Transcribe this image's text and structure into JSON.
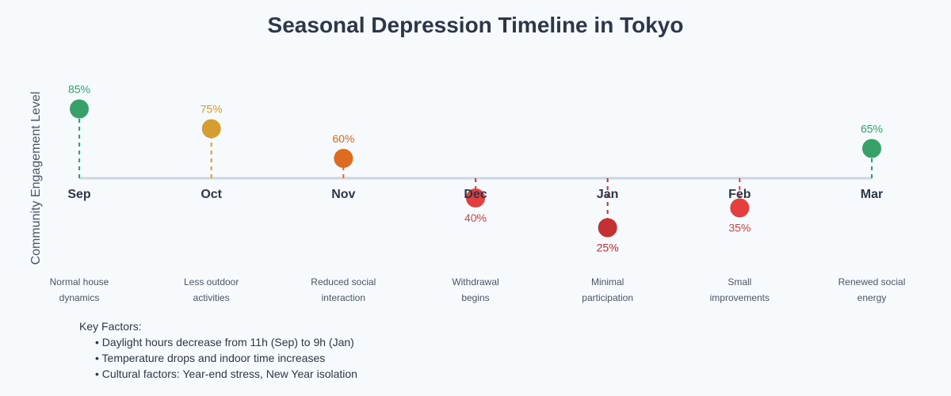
{
  "chart_data": {
    "type": "scatter",
    "title": "Seasonal Depression Timeline in Tokyo",
    "ylabel": "Community Engagement Level",
    "baseline": 50,
    "categories": [
      "Sep",
      "Oct",
      "Nov",
      "Dec",
      "Jan",
      "Feb",
      "Mar"
    ],
    "values": [
      85,
      75,
      60,
      40,
      25,
      35,
      65
    ],
    "labels": [
      "85%",
      "75%",
      "60%",
      "40%",
      "25%",
      "35%",
      "65%"
    ],
    "colors": [
      "#38a169",
      "#d69e2e",
      "#dd6b20",
      "#e53e3e",
      "#c53030",
      "#e53e3e",
      "#38a169"
    ],
    "descriptions": [
      [
        "Normal house",
        "dynamics"
      ],
      [
        "Less outdoor",
        "activities"
      ],
      [
        "Reduced social",
        "interaction"
      ],
      [
        "Withdrawal",
        "begins"
      ],
      [
        "Minimal",
        "participation"
      ],
      [
        "Small",
        "improvements"
      ],
      [
        "Renewed social",
        "energy"
      ]
    ]
  },
  "key_factors": {
    "title": "Key Factors:",
    "items": [
      "• Daylight hours decrease from 11h (Sep) to 9h (Jan)",
      "• Temperature drops and indoor time increases",
      "• Cultural factors: Year-end stress, New Year isolation"
    ]
  }
}
